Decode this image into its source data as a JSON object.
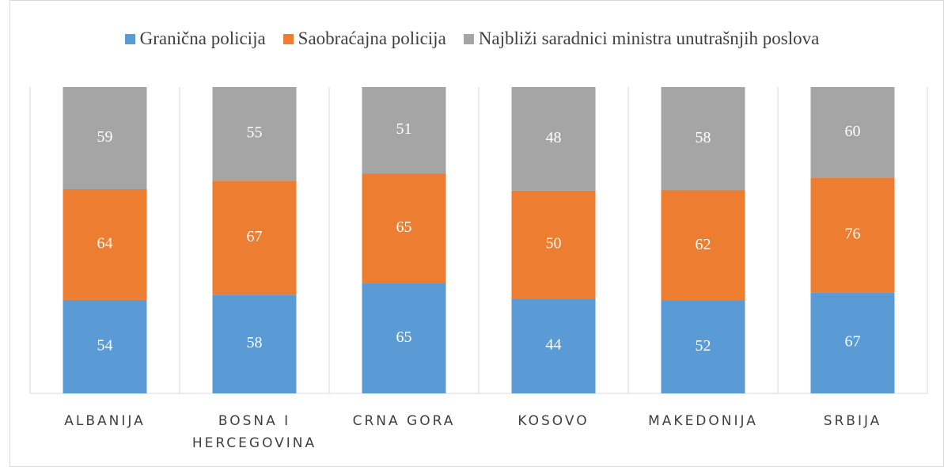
{
  "chart_data": {
    "type": "bar",
    "stacking": "percent",
    "categories": [
      "ALBANIJA",
      "BOSNA I HERCEGOVINA",
      "CRNA GORA",
      "KOSOVO",
      "MAKEDONIJA",
      "SRBIJA"
    ],
    "series": [
      {
        "name": "Granična policija",
        "color": "#5b9bd5",
        "values": [
          54,
          58,
          65,
          44,
          52,
          67
        ]
      },
      {
        "name": "Saobraćajna policija",
        "color": "#ed7d31",
        "values": [
          64,
          67,
          65,
          50,
          62,
          76
        ]
      },
      {
        "name": "Najbliži saradnici ministra unutrašnjih poslova",
        "color": "#a5a5a5",
        "values": [
          59,
          55,
          51,
          48,
          58,
          60
        ]
      }
    ],
    "legend": "top",
    "data_labels": true
  }
}
